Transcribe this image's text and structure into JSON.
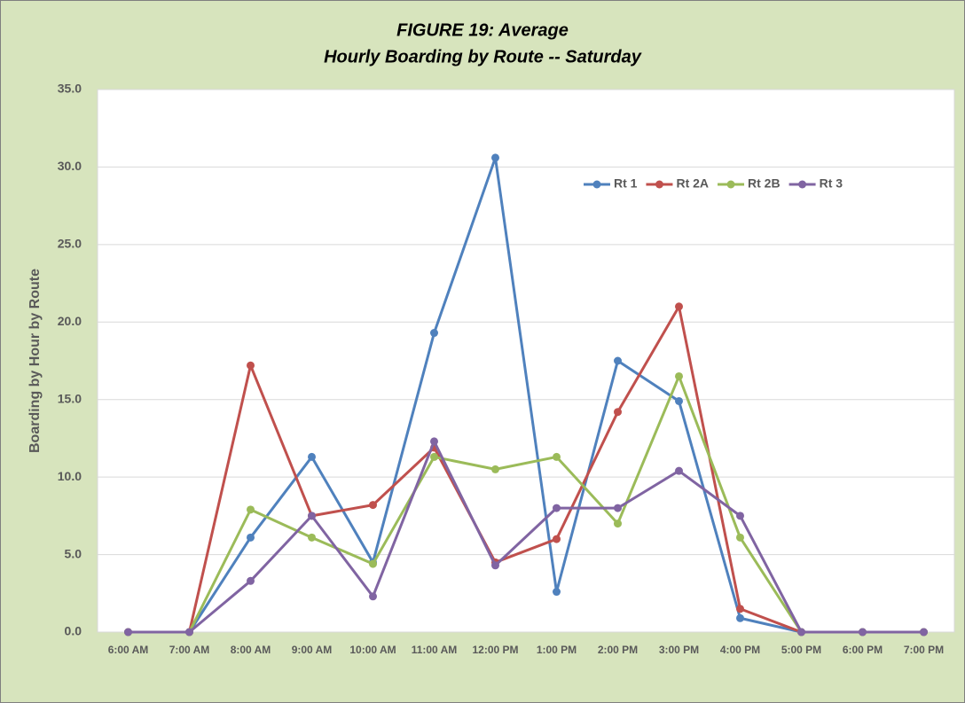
{
  "chart_data": {
    "type": "line",
    "title": "FIGURE 19: Average",
    "subtitle": "Hourly Boarding by Route -- Saturday",
    "y_label": "Boarding by Hour by Route",
    "categories": [
      "6:00 AM",
      "7:00 AM",
      "8:00 AM",
      "9:00 AM",
      "10:00 AM",
      "11:00 AM",
      "12:00 PM",
      "1:00 PM",
      "2:00 PM",
      "3:00 PM",
      "4:00 PM",
      "5:00 PM",
      "6:00 PM",
      "7:00 PM"
    ],
    "series": [
      {
        "name": "Rt 1",
        "color": "#4f81bd",
        "values": [
          0,
          0,
          6.1,
          11.3,
          4.5,
          19.3,
          30.6,
          2.6,
          17.5,
          14.9,
          0.9,
          0,
          0,
          0
        ]
      },
      {
        "name": "Rt 2A",
        "color": "#c0504d",
        "values": [
          0,
          0,
          17.2,
          7.5,
          8.2,
          11.9,
          4.5,
          6.0,
          14.2,
          21.0,
          1.5,
          0,
          0,
          0
        ]
      },
      {
        "name": "Rt 2B",
        "color": "#9bbb59",
        "values": [
          0,
          0,
          7.9,
          6.1,
          4.4,
          11.3,
          10.5,
          11.3,
          7.0,
          16.5,
          6.1,
          0,
          0,
          0
        ]
      },
      {
        "name": "Rt 3",
        "color": "#8064a2",
        "values": [
          0,
          0,
          3.3,
          7.5,
          2.3,
          12.3,
          4.3,
          8.0,
          8.0,
          10.4,
          7.5,
          0,
          0,
          0
        ]
      }
    ],
    "ylim": [
      0,
      35
    ],
    "yticks": [
      {
        "value": 0,
        "label": "0.0"
      },
      {
        "value": 5,
        "label": "5.0"
      },
      {
        "value": 10,
        "label": "10.0"
      },
      {
        "value": 15,
        "label": "15.0"
      },
      {
        "value": 20,
        "label": "20.0"
      },
      {
        "value": 25,
        "label": "25.0"
      },
      {
        "value": 30,
        "label": "30.0"
      },
      {
        "value": 35,
        "label": "35.0"
      }
    ],
    "grid": true,
    "legend": "top-right"
  }
}
